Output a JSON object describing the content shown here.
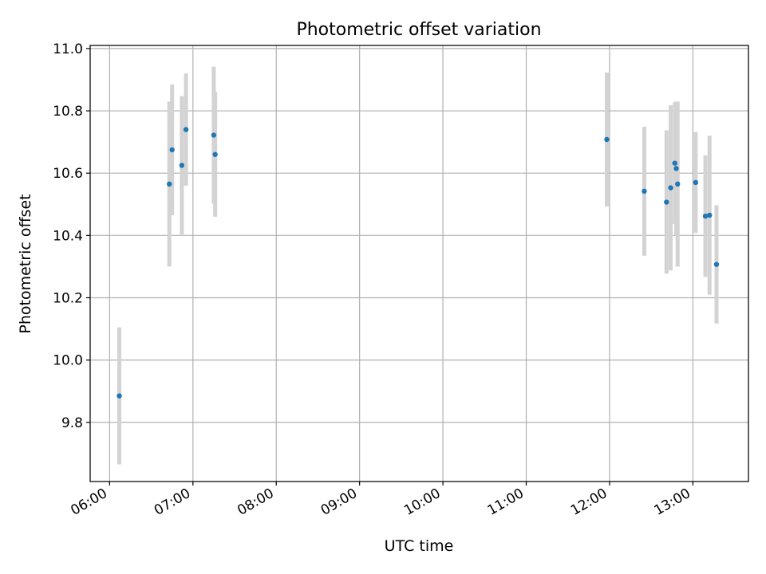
{
  "chart_data": {
    "type": "scatter",
    "title": "Photometric offset variation",
    "xlabel": "UTC time",
    "ylabel": "Photometric offset",
    "x_tick_labels": [
      "06:00",
      "07:00",
      "08:00",
      "09:00",
      "10:00",
      "11:00",
      "12:00",
      "13:00"
    ],
    "x_tick_values": [
      "06:00",
      "07:00",
      "08:00",
      "09:00",
      "10:00",
      "11:00",
      "12:00",
      "13:00"
    ],
    "y_tick_labels": [
      "9.8",
      "10.0",
      "10.2",
      "10.4",
      "10.6",
      "10.8",
      "11.0"
    ],
    "y_tick_values": [
      9.8,
      10.0,
      10.2,
      10.4,
      10.6,
      10.8,
      11.0
    ],
    "xlim": [
      "05:46",
      "13:40"
    ],
    "ylim": [
      9.61,
      11.01
    ],
    "grid": true,
    "legend": "none",
    "colors": {
      "marker": "#1f77b4",
      "errorbar": "#d3d3d3",
      "grid": "#b0b0b0",
      "axes": "#000000"
    },
    "points": [
      {
        "x": "06:07",
        "y": 9.885,
        "yerr": 0.22
      },
      {
        "x": "06:43",
        "y": 10.565,
        "yerr": 0.265
      },
      {
        "x": "06:45",
        "y": 10.675,
        "yerr": 0.21
      },
      {
        "x": "06:52",
        "y": 10.625,
        "yerr": 0.222
      },
      {
        "x": "06:55",
        "y": 10.74,
        "yerr": 0.18
      },
      {
        "x": "07:15",
        "y": 10.722,
        "yerr": 0.22
      },
      {
        "x": "07:16",
        "y": 10.66,
        "yerr": 0.2
      },
      {
        "x": "11:58",
        "y": 10.708,
        "yerr": 0.215
      },
      {
        "x": "12:25",
        "y": 10.542,
        "yerr": 0.207
      },
      {
        "x": "12:41",
        "y": 10.507,
        "yerr": 0.23
      },
      {
        "x": "12:44",
        "y": 10.553,
        "yerr": 0.265
      },
      {
        "x": "12:47",
        "y": 10.632,
        "yerr": 0.195
      },
      {
        "x": "12:48",
        "y": 10.615,
        "yerr": 0.215
      },
      {
        "x": "12:49",
        "y": 10.565,
        "yerr": 0.265
      },
      {
        "x": "13:02",
        "y": 10.57,
        "yerr": 0.162
      },
      {
        "x": "13:09",
        "y": 10.462,
        "yerr": 0.195
      },
      {
        "x": "13:12",
        "y": 10.465,
        "yerr": 0.255
      },
      {
        "x": "13:17",
        "y": 10.307,
        "yerr": 0.19
      }
    ]
  }
}
